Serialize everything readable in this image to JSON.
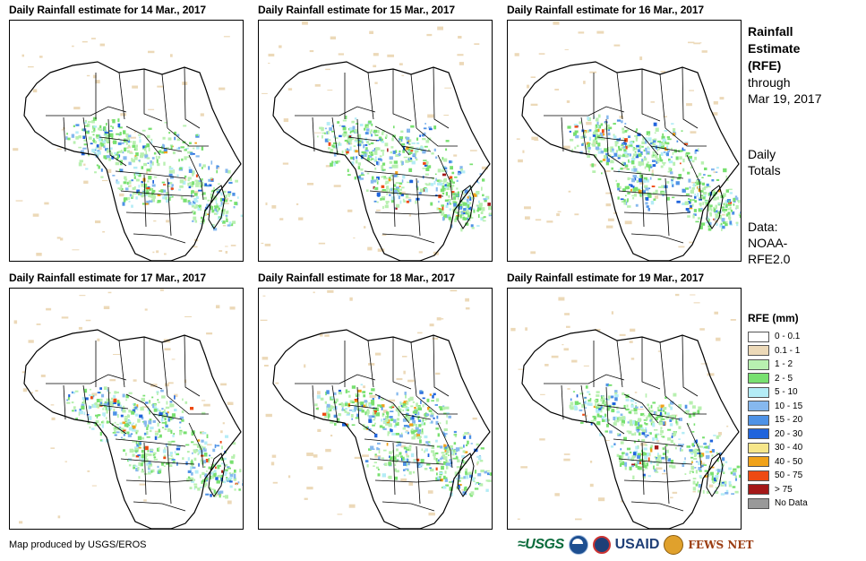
{
  "panels": [
    {
      "title": "Daily Rainfall estimate for 14 Mar., 2017",
      "seed": 14
    },
    {
      "title": "Daily Rainfall estimate for 15 Mar., 2017",
      "seed": 15
    },
    {
      "title": "Daily Rainfall estimate for 16 Mar., 2017",
      "seed": 16
    },
    {
      "title": "Daily Rainfall estimate for 17 Mar., 2017",
      "seed": 17
    },
    {
      "title": "Daily Rainfall estimate for 18 Mar., 2017",
      "seed": 18
    },
    {
      "title": "Daily Rainfall estimate for 19 Mar., 2017",
      "seed": 19
    }
  ],
  "side": {
    "title_line1": "Rainfall",
    "title_line2": "Estimate",
    "title_line3": "(RFE)",
    "through": "through",
    "date": "Mar 19, 2017",
    "daily": "Daily",
    "totals": "Totals",
    "data_label": "Data:",
    "source1": "NOAA-",
    "source2": "RFE2.0"
  },
  "legend": {
    "title": "RFE (mm)",
    "items": [
      {
        "label": "0 - 0.1",
        "color": "#ffffff"
      },
      {
        "label": "0.1 - 1",
        "color": "#ecd9b8"
      },
      {
        "label": "1 - 2",
        "color": "#b8f0b0"
      },
      {
        "label": "2 - 5",
        "color": "#78e070"
      },
      {
        "label": "5 - 10",
        "color": "#b4ecf6"
      },
      {
        "label": "10 - 15",
        "color": "#86b8ee"
      },
      {
        "label": "15 - 20",
        "color": "#4e92e6"
      },
      {
        "label": "20 - 30",
        "color": "#2064dc"
      },
      {
        "label": "30 - 40",
        "color": "#f6e68a"
      },
      {
        "label": "40 - 50",
        "color": "#f0a21a"
      },
      {
        "label": "50 - 75",
        "color": "#ee4a12"
      },
      {
        "label": "> 75",
        "color": "#a41818"
      },
      {
        "label": "No Data",
        "color": "#999999"
      }
    ]
  },
  "credit": "Map produced by USGS/EROS",
  "logos": {
    "usgs": "≈USGS",
    "usaid": "USAID",
    "fews": "FEWS NET"
  }
}
